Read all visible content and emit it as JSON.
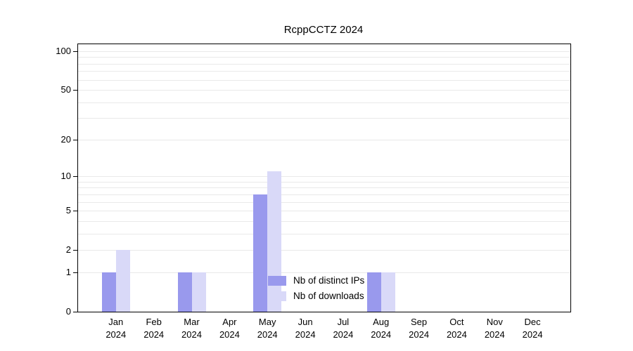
{
  "chart_data": {
    "type": "bar",
    "title": "RcppCCTZ 2024",
    "categories": [
      "Jan",
      "Feb",
      "Mar",
      "Apr",
      "May",
      "Jun",
      "Jul",
      "Aug",
      "Sep",
      "Oct",
      "Nov",
      "Dec"
    ],
    "x_sublabel": "2024",
    "series": [
      {
        "name": "Nb of distinct IPs",
        "color": "#9999ed",
        "values": [
          1,
          0,
          1,
          0,
          7,
          0,
          0,
          1,
          0,
          0,
          0,
          0
        ]
      },
      {
        "name": "Nb of downloads",
        "color": "#d9d9f8",
        "values": [
          2,
          0,
          1,
          0,
          11,
          0,
          0,
          1,
          0,
          0,
          0,
          0
        ]
      }
    ],
    "y_ticks": [
      0,
      1,
      2,
      5,
      10,
      20,
      50,
      100
    ],
    "gridlines": [
      1,
      2,
      3,
      4,
      5,
      6,
      7,
      8,
      9,
      10,
      20,
      30,
      40,
      50,
      60,
      70,
      80,
      90,
      100
    ],
    "scale": "log1p",
    "ylim": [
      0,
      115
    ],
    "grid": true,
    "legend": {
      "position": "bottom-center",
      "entries": [
        "Nb of distinct IPs",
        "Nb of downloads"
      ]
    }
  }
}
